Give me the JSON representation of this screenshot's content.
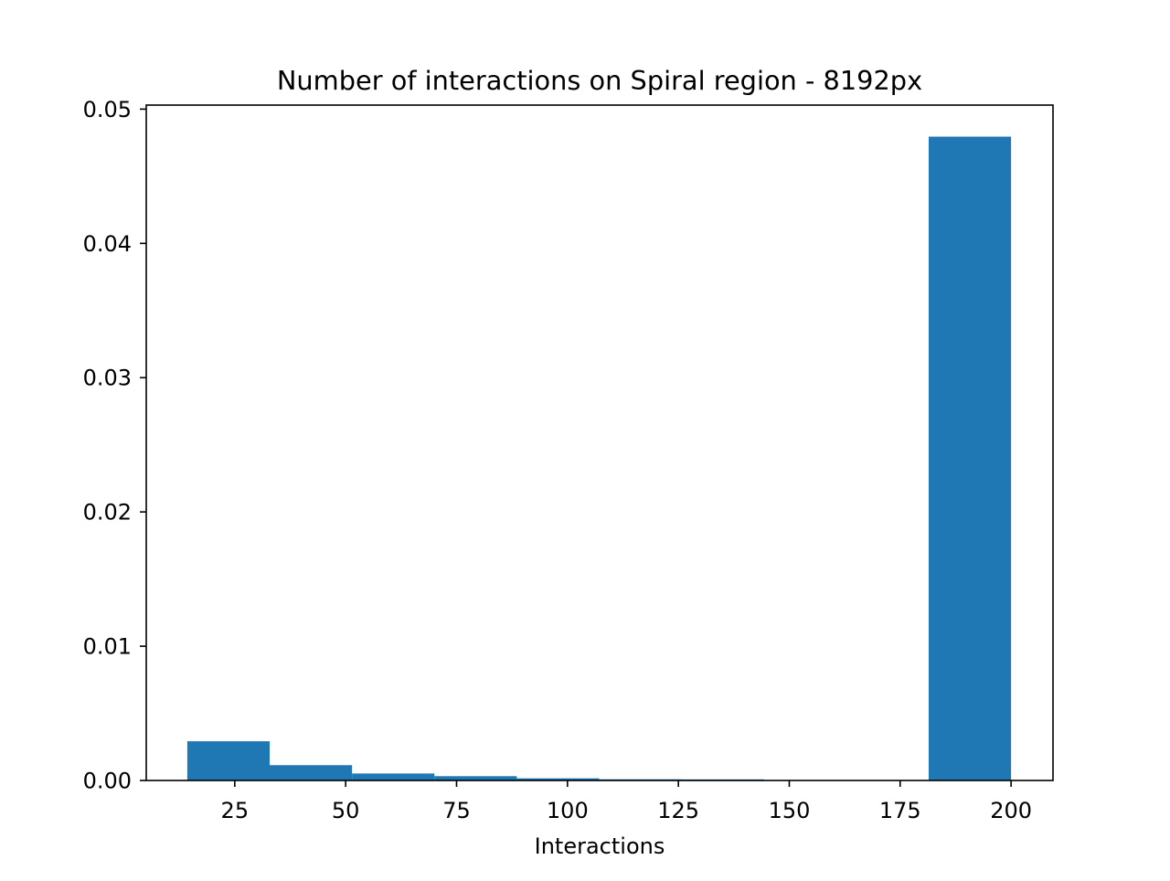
{
  "chart_data": {
    "type": "bar",
    "title": "Number of interactions on Spiral region - 8192px",
    "xlabel": "Interactions",
    "ylabel": "",
    "xlim": [
      5.05,
      209.45
    ],
    "ylim": [
      0,
      0.0503
    ],
    "x_ticks": [
      25,
      50,
      75,
      100,
      125,
      150,
      175,
      200
    ],
    "x_tick_labels": [
      "25",
      "50",
      "75",
      "100",
      "125",
      "150",
      "175",
      "200"
    ],
    "y_ticks": [
      0,
      0.01,
      0.02,
      0.03,
      0.04,
      0.05
    ],
    "y_tick_labels": [
      "0.00",
      "0.01",
      "0.02",
      "0.03",
      "0.04",
      "0.05"
    ],
    "bin_edges": [
      14.3,
      32.87,
      51.44,
      70.01,
      88.58,
      107.15,
      125.72,
      144.29,
      162.86,
      181.43,
      200.0
    ],
    "values": [
      0.00292,
      0.00114,
      0.00052,
      0.00032,
      0.00016,
      9e-05,
      8e-05,
      0.0,
      0.0,
      0.04795
    ],
    "grid": false,
    "legend": "none",
    "colors": {
      "bar": "#1f77b4",
      "axes": "#000000",
      "background": "#ffffff"
    }
  }
}
